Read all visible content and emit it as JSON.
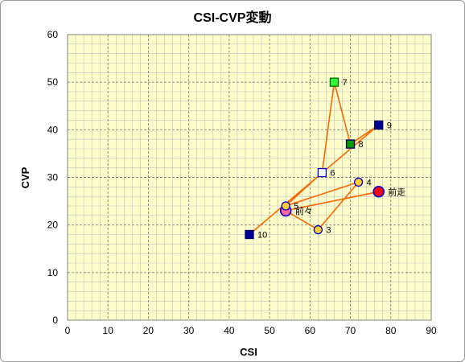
{
  "chart_data": {
    "type": "scatter",
    "title": "CSI-CVP変動",
    "xlabel": "CSI",
    "ylabel": "CVP",
    "xlim": [
      0,
      90
    ],
    "ylim": [
      0,
      60
    ],
    "xticks": [
      0,
      10,
      20,
      30,
      40,
      50,
      60,
      70,
      80,
      90
    ],
    "yticks": [
      0,
      10,
      20,
      30,
      40,
      50,
      60
    ],
    "grid": true,
    "path_order": [
      "前走",
      "前々",
      "3",
      "4",
      "5",
      "6",
      "7",
      "8",
      "9",
      "10"
    ],
    "points": [
      {
        "label": "前走",
        "x": 77,
        "y": 27,
        "marker": "circle-large",
        "fill": "#ff0000",
        "stroke": "#0000cc"
      },
      {
        "label": "前々",
        "x": 54,
        "y": 23,
        "marker": "circle-large",
        "fill": "#ff6699",
        "stroke": "#0000cc"
      },
      {
        "label": "3",
        "x": 62,
        "y": 19,
        "marker": "circle",
        "fill": "#ffcc33",
        "stroke": "#0000cc"
      },
      {
        "label": "4",
        "x": 72,
        "y": 29,
        "marker": "circle",
        "fill": "#ffcc33",
        "stroke": "#0000cc"
      },
      {
        "label": "5",
        "x": 54,
        "y": 24,
        "marker": "circle",
        "fill": "#ffcc33",
        "stroke": "#0000cc"
      },
      {
        "label": "6",
        "x": 63,
        "y": 31,
        "marker": "square",
        "fill": "#ffffff",
        "stroke": "#0000cc"
      },
      {
        "label": "7",
        "x": 66,
        "y": 50,
        "marker": "square",
        "fill": "#33ff33",
        "stroke": "#006600"
      },
      {
        "label": "8",
        "x": 70,
        "y": 37,
        "marker": "square",
        "fill": "#009900",
        "stroke": "#000066"
      },
      {
        "label": "9",
        "x": 77,
        "y": 41,
        "marker": "square",
        "fill": "#000099",
        "stroke": "#000066"
      },
      {
        "label": "10",
        "x": 45,
        "y": 18,
        "marker": "square",
        "fill": "#000099",
        "stroke": "#000066"
      }
    ],
    "colors": {
      "plot_bg": "#ffffcc",
      "line": "#ff6600",
      "grid_major": "#808080",
      "grid_minor": "#c0c0c0"
    }
  }
}
